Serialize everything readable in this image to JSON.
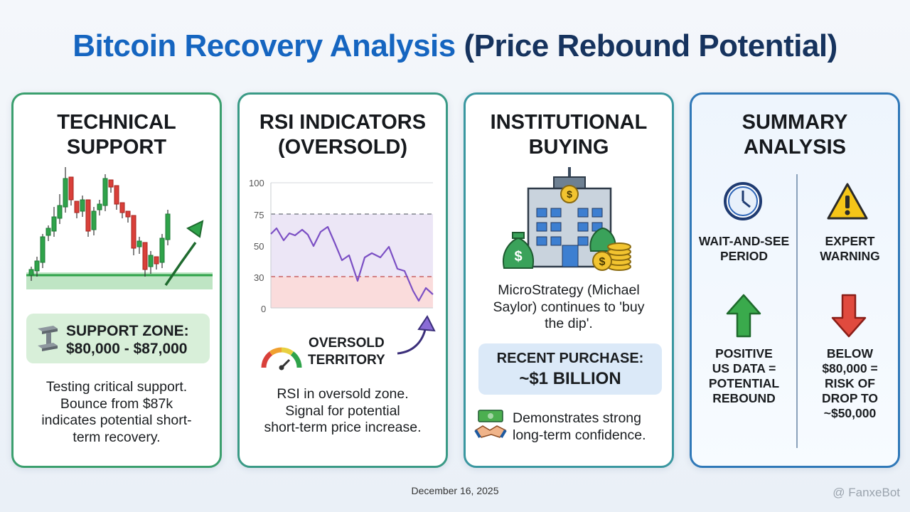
{
  "title": {
    "part1": "Bitcoin Recovery Analysis",
    "part2": "(Price Rebound Potential)"
  },
  "cards": {
    "technical": {
      "title_line1": "TECHNICAL",
      "title_line2": "SUPPORT",
      "support_line1": "SUPPORT ZONE:",
      "support_line2": "$80,000 - $87,000",
      "body": [
        "Testing critical support.",
        "Bounce from $87k",
        "indicates potential short-",
        "term recovery."
      ]
    },
    "rsi": {
      "title_line1": "RSI INDICATORS",
      "title_line2": "(OVERSOLD)",
      "axis_ticks": [
        "100",
        "75",
        "50",
        "30",
        "0"
      ],
      "oversold_line1": "OVERSOLD",
      "oversold_line2": "TERRITORY",
      "body": [
        "RSI in oversold zone.",
        "Signal for potential",
        "short-term price increase."
      ]
    },
    "institutional": {
      "title_line1": "INSTITUTIONAL",
      "title_line2": "BUYING",
      "quote": [
        "MicroStrategy (Michael",
        "Saylor) continues to 'buy",
        "the dip'."
      ],
      "purchase_label": "RECENT PURCHASE:",
      "purchase_value": "~$1 BILLION",
      "confidence": [
        "Demonstrates strong",
        "long-term confidence."
      ]
    },
    "summary": {
      "title_line1": "SUMMARY",
      "title_line2": "ANALYSIS",
      "wait": [
        "WAIT-AND-SEE",
        "PERIOD"
      ],
      "warning": [
        "EXPERT",
        "WARNING"
      ],
      "positive": [
        "POSITIVE",
        "US DATA =",
        "POTENTIAL",
        "REBOUND"
      ],
      "below": [
        "BELOW",
        "$80,000 =",
        "RISK OF",
        "DROP TO",
        "~$50,000"
      ]
    }
  },
  "footer": {
    "date": "December 16, 2025",
    "watermark": "@ FanxeBot"
  },
  "colors": {
    "title_blue": "#1565c0",
    "title_navy": "#16335e",
    "bull": "#2fa34a",
    "bear": "#d9403a",
    "rsi_line": "#7b4fc4"
  },
  "icons": [
    "steel-beam-icon",
    "gauge-icon",
    "curved-arrow-icon",
    "bank-building-icon",
    "money-bag-icon",
    "coin-stack-icon",
    "handshake-icon",
    "banknote-icon",
    "clock-icon",
    "warning-icon",
    "up-arrow-icon",
    "down-arrow-icon"
  ]
}
